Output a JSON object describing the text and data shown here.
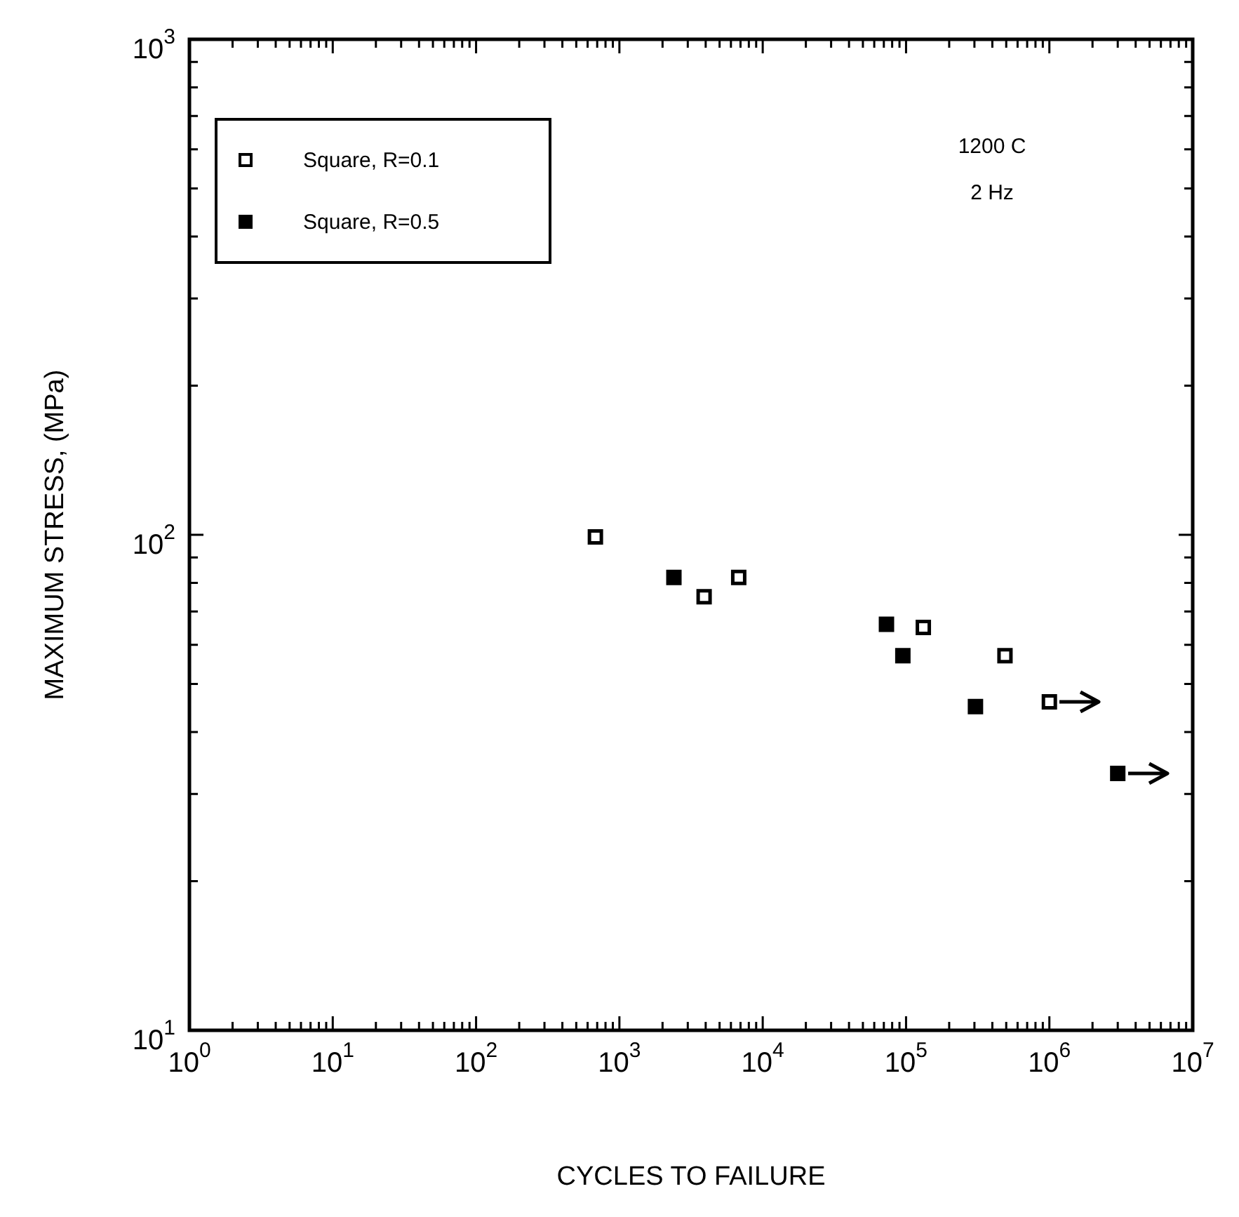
{
  "chart_data": {
    "type": "scatter",
    "xlabel": "CYCLES TO FAILURE",
    "ylabel": "MAXIMUM STRESS, (MPa)",
    "annotations": [
      "1200 C",
      "2 Hz"
    ],
    "log": "xy",
    "grid": false,
    "legend": "top left",
    "marker": "square",
    "xlim": [
      1,
      10000000
    ],
    "ylim": [
      10,
      1000
    ],
    "xticks": [
      {
        "value": 1,
        "label": "10$^{0}$"
      },
      {
        "value": 2,
        "label": null
      },
      {
        "value": 3,
        "label": null
      },
      {
        "value": 4,
        "label": null
      },
      {
        "value": 5,
        "label": null
      },
      {
        "value": 6,
        "label": null
      },
      {
        "value": 7,
        "label": null
      },
      {
        "value": 8,
        "label": null
      },
      {
        "value": 9,
        "label": null
      },
      {
        "value": 10,
        "label": "10$^{1}$"
      },
      {
        "value": 20,
        "label": null
      },
      {
        "value": 30,
        "label": null
      },
      {
        "value": 40,
        "label": null
      },
      {
        "value": 50,
        "label": null
      },
      {
        "value": 60,
        "label": null
      },
      {
        "value": 70,
        "label": null
      },
      {
        "value": 80,
        "label": null
      },
      {
        "value": 90,
        "label": null
      },
      {
        "value": 100,
        "label": "10$^{2}$"
      },
      {
        "value": 200,
        "label": null
      },
      {
        "value": 300,
        "label": null
      },
      {
        "value": 400,
        "label": null
      },
      {
        "value": 500,
        "label": null
      },
      {
        "value": 600,
        "label": null
      },
      {
        "value": 700,
        "label": null
      },
      {
        "value": 800,
        "label": null
      },
      {
        "value": 900,
        "label": null
      },
      {
        "value": 1000,
        "label": "10$^{3}$"
      },
      {
        "value": 2000,
        "label": null
      },
      {
        "value": 3000,
        "label": null
      },
      {
        "value": 4000,
        "label": null
      },
      {
        "value": 5000,
        "label": null
      },
      {
        "value": 6000,
        "label": null
      },
      {
        "value": 7000,
        "label": null
      },
      {
        "value": 8000,
        "label": null
      },
      {
        "value": 9000,
        "label": null
      },
      {
        "value": 10000,
        "label": "10$^{4}$"
      },
      {
        "value": 20000,
        "label": null
      },
      {
        "value": 30000,
        "label": null
      },
      {
        "value": 40000,
        "label": null
      },
      {
        "value": 50000,
        "label": null
      },
      {
        "value": 60000,
        "label": null
      },
      {
        "value": 70000,
        "label": null
      },
      {
        "value": 80000,
        "label": null
      },
      {
        "value": 90000,
        "label": null
      },
      {
        "value": 100000,
        "label": "10$^{5}$"
      },
      {
        "value": 200000,
        "label": null
      },
      {
        "value": 300000,
        "label": null
      },
      {
        "value": 400000,
        "label": null
      },
      {
        "value": 500000,
        "label": null
      },
      {
        "value": 600000,
        "label": null
      },
      {
        "value": 700000,
        "label": null
      },
      {
        "value": 800000,
        "label": null
      },
      {
        "value": 900000,
        "label": null
      },
      {
        "value": 1000000,
        "label": "10$^{6}$"
      },
      {
        "value": 2000000,
        "label": null
      },
      {
        "value": 3000000,
        "label": null
      },
      {
        "value": 4000000,
        "label": null
      },
      {
        "value": 5000000,
        "label": null
      },
      {
        "value": 6000000,
        "label": null
      },
      {
        "value": 7000000,
        "label": null
      },
      {
        "value": 8000000,
        "label": null
      },
      {
        "value": 9000000,
        "label": null
      },
      {
        "value": 10000000,
        "label": "10$^{7}$"
      }
    ],
    "yticks": [
      {
        "value": 10,
        "label": "10$^{1}$"
      },
      {
        "value": 20,
        "label": null
      },
      {
        "value": 30,
        "label": null
      },
      {
        "value": 40,
        "label": null
      },
      {
        "value": 50,
        "label": null
      },
      {
        "value": 60,
        "label": null
      },
      {
        "value": 70,
        "label": null
      },
      {
        "value": 80,
        "label": null
      },
      {
        "value": 90,
        "label": null
      },
      {
        "value": 100,
        "label": "10$^{2}$"
      },
      {
        "value": 200,
        "label": null
      },
      {
        "value": 300,
        "label": null
      },
      {
        "value": 400,
        "label": null
      },
      {
        "value": 500,
        "label": null
      },
      {
        "value": 600,
        "label": null
      },
      {
        "value": 700,
        "label": null
      },
      {
        "value": 800,
        "label": null
      },
      {
        "value": 900,
        "label": null
      },
      {
        "value": 1000,
        "label": "10$^{3}$"
      }
    ],
    "series": [
      {
        "name": "Square, R=0.1",
        "color": "#000000",
        "x": [
          680,
          3900,
          6800,
          132000,
          490000,
          1000000
        ],
        "values": [
          99,
          75,
          82,
          65,
          57,
          46
        ]
      },
      {
        "name": "Square, R=0.5",
        "color": "#000000",
        "x": [
          2400,
          73000,
          95000,
          305000,
          3000000
        ],
        "values": [
          82,
          66,
          57,
          45,
          33
        ]
      }
    ]
  }
}
